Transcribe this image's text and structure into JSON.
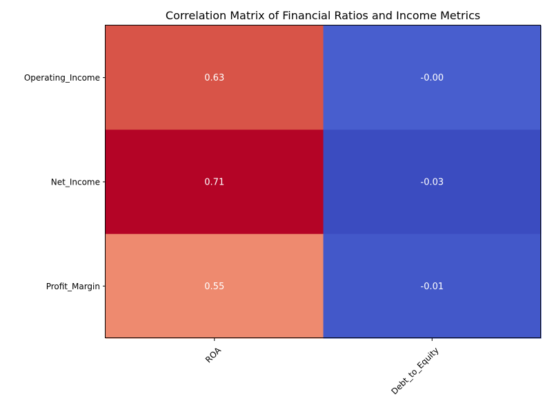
{
  "chart_data": {
    "type": "heatmap",
    "title": "Correlation Matrix of Financial Ratios and Income Metrics",
    "x_categories": [
      "ROA",
      "Debt_to_Equity"
    ],
    "y_categories": [
      "Operating_Income",
      "Net_Income",
      "Profit_Margin"
    ],
    "values": [
      [
        0.63,
        -0.0
      ],
      [
        0.71,
        -0.03
      ],
      [
        0.55,
        -0.01
      ]
    ],
    "value_labels": [
      [
        "0.63",
        "-0.00"
      ],
      [
        "0.71",
        "-0.03"
      ],
      [
        "0.55",
        "-0.01"
      ]
    ],
    "colormap": "coolwarm",
    "color_range": [
      -0.03,
      0.71
    ],
    "label_color": "#ffffff",
    "x_tick_rotation_deg": 45,
    "grid": false
  }
}
